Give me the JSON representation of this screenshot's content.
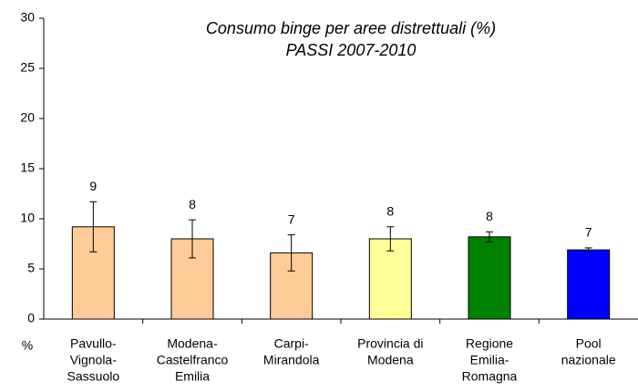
{
  "chart_data": {
    "type": "bar",
    "title": "Consumo binge per aree distrettuali  (%)",
    "subtitle": "PASSI 2007-2010",
    "y_label": "%",
    "categories": [
      [
        "Pavullo-",
        "Vignola-",
        "Sassuolo"
      ],
      [
        "Modena-",
        "Castelfranco",
        "Emilia"
      ],
      [
        "Carpi-",
        "Mirandola"
      ],
      [
        "Provincia di",
        "Modena"
      ],
      [
        "Regione",
        "Emilia-",
        "Romagna"
      ],
      [
        "Pool",
        "nazionale"
      ]
    ],
    "values": [
      9.2,
      8.0,
      6.6,
      8.0,
      8.2,
      6.9
    ],
    "value_labels": [
      "9",
      "8",
      "7",
      "8",
      "8",
      "7"
    ],
    "errors": [
      2.5,
      1.9,
      1.8,
      1.2,
      0.5,
      0.2
    ],
    "colors": [
      "#ffcc99",
      "#ffcc99",
      "#ffcc99",
      "#ffff99",
      "#008000",
      "#0000ff"
    ],
    "ylim": [
      0,
      30
    ],
    "yticks": [
      0,
      5,
      10,
      15,
      20,
      25,
      30
    ],
    "grid": false
  }
}
